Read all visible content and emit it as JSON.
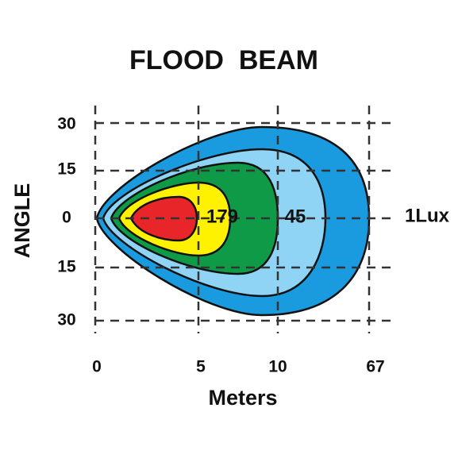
{
  "title": "FLOOD  BEAM",
  "y_axis": {
    "label": "ANGLE",
    "ticks": [
      "30",
      "15",
      "0",
      "15",
      "30"
    ]
  },
  "x_axis": {
    "label": "Meters",
    "ticks": [
      "0",
      "5",
      "10",
      "67"
    ]
  },
  "zones": [
    {
      "label": "179"
    },
    {
      "label": "45"
    },
    {
      "label": "1Lux"
    }
  ]
}
